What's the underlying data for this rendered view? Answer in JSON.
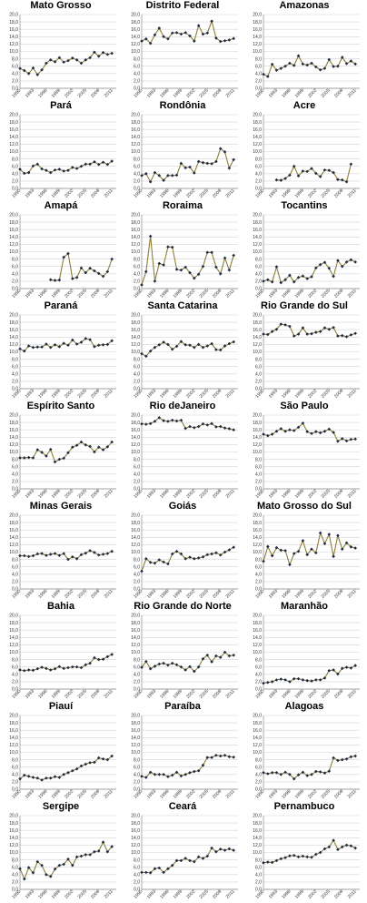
{
  "chart_data": {
    "type": "line",
    "layout": "small-multiples-3x9",
    "x_ticks": [
      "1990",
      "1993",
      "1996",
      "1999",
      "2002",
      "2005",
      "2008",
      "2011"
    ],
    "y_ticks": [
      "0,0",
      "2,0",
      "4,0",
      "6,0",
      "8,0",
      "10,0",
      "12,0",
      "14,0",
      "16,0",
      "18,0",
      "20,0"
    ],
    "x_range": [
      1990,
      2012
    ],
    "ylim": [
      0,
      20
    ],
    "grid": "horizontal",
    "line_color": "#8b7d3a",
    "marker_color": "#1f2a44",
    "panels": [
      {
        "title": "Mato Grosso",
        "start": 1990,
        "values": [
          5.4,
          4.8,
          4.0,
          5.5,
          3.7,
          5.0,
          6.8,
          7.7,
          7.2,
          8.3,
          7.1,
          7.5,
          8.2,
          7.7,
          6.8,
          7.7,
          8.3,
          9.8,
          8.7,
          9.7,
          9.2,
          9.5
        ]
      },
      {
        "title": "Distrito Federal",
        "start": 1990,
        "values": [
          12.8,
          13.4,
          12.2,
          14.5,
          16.3,
          14.0,
          13.4,
          15.0,
          15.1,
          14.7,
          15.1,
          14.2,
          12.8,
          17.0,
          14.7,
          15.0,
          18.2,
          13.6,
          12.7,
          12.9,
          13.1,
          13.5
        ]
      },
      {
        "title": "Amazonas",
        "start": 1990,
        "values": [
          3.8,
          3.2,
          6.5,
          4.9,
          5.4,
          6.0,
          6.8,
          6.2,
          8.8,
          6.6,
          6.3,
          6.8,
          5.8,
          5.0,
          5.4,
          7.8,
          5.9,
          6.0,
          8.4,
          6.7,
          7.4,
          6.6
        ]
      },
      {
        "title": "Pará",
        "start": 1990,
        "values": [
          5.2,
          4.1,
          4.3,
          6.1,
          6.6,
          5.3,
          4.9,
          4.3,
          5.0,
          5.2,
          4.7,
          4.9,
          5.7,
          5.4,
          6.0,
          6.6,
          6.6,
          7.2,
          6.5,
          7.1,
          6.5,
          7.4
        ]
      },
      {
        "title": "Rondônia",
        "start": 1990,
        "values": [
          3.5,
          4.0,
          1.8,
          4.3,
          3.5,
          2.2,
          3.5,
          3.5,
          3.6,
          6.8,
          5.6,
          5.8,
          4.2,
          7.3,
          7.0,
          6.8,
          6.7,
          7.3,
          10.8,
          9.9,
          5.5,
          7.8
        ]
      },
      {
        "title": "Acre",
        "start": 1993,
        "values": [
          2.3,
          2.2,
          2.7,
          3.6,
          6.0,
          3.4,
          4.7,
          4.6,
          5.4,
          4.1,
          3.2,
          5.0,
          4.9,
          4.3,
          2.4,
          2.3,
          1.8,
          6.6
        ]
      },
      {
        "title": "Amapá",
        "start": 1997,
        "values": [
          2.4,
          2.2,
          2.3,
          8.5,
          9.5,
          2.7,
          3.0,
          5.6,
          4.3,
          5.5,
          4.8,
          4.1,
          3.3,
          4.6,
          8.0
        ]
      },
      {
        "title": "Roraima",
        "start": 1990,
        "values": [
          1.0,
          4.6,
          14.2,
          2.0,
          6.8,
          6.4,
          11.3,
          11.2,
          5.2,
          5.0,
          5.8,
          4.3,
          2.8,
          3.9,
          6.0,
          9.8,
          9.8,
          5.8,
          4.0,
          8.3,
          5.0,
          9.0
        ]
      },
      {
        "title": "Tocantins",
        "start": 1990,
        "values": [
          2.0,
          2.4,
          1.8,
          5.9,
          1.6,
          2.4,
          3.6,
          1.8,
          3.0,
          3.4,
          2.7,
          3.2,
          5.6,
          6.5,
          7.1,
          5.5,
          3.3,
          7.6,
          6.0,
          7.2,
          7.8,
          7.2
        ]
      },
      {
        "title": "Paraná",
        "start": 1990,
        "values": [
          10.8,
          10.2,
          11.6,
          11.2,
          11.3,
          11.3,
          12.1,
          11.2,
          11.9,
          11.4,
          12.3,
          11.8,
          13.2,
          12.1,
          12.6,
          13.6,
          13.3,
          11.4,
          11.8,
          11.9,
          12.0,
          13.0
        ]
      },
      {
        "title": "Santa Catarina",
        "start": 1990,
        "values": [
          9.5,
          8.8,
          10.2,
          11.2,
          11.9,
          12.6,
          12.0,
          10.7,
          11.5,
          12.8,
          11.9,
          11.8,
          11.2,
          12.0,
          11.2,
          11.6,
          12.2,
          10.6,
          10.5,
          11.6,
          12.2,
          12.7
        ]
      },
      {
        "title": "Rio Grande do Sul",
        "start": 1990,
        "values": [
          14.8,
          14.7,
          15.5,
          16.1,
          17.5,
          17.3,
          16.9,
          14.3,
          14.8,
          16.5,
          14.8,
          14.9,
          15.3,
          15.5,
          16.5,
          16.1,
          16.6,
          14.3,
          14.4,
          14.1,
          14.6,
          15.0
        ]
      },
      {
        "title": "Espírito Santo",
        "start": 1990,
        "values": [
          8.4,
          8.4,
          8.5,
          8.4,
          10.6,
          9.9,
          8.9,
          10.7,
          7.3,
          8.0,
          8.3,
          9.8,
          11.3,
          11.8,
          12.7,
          11.9,
          11.5,
          10.0,
          11.3,
          10.6,
          11.4,
          12.7
        ]
      },
      {
        "title": "Rio deJaneiro",
        "start": 1990,
        "values": [
          17.6,
          17.5,
          17.7,
          18.3,
          19.3,
          18.5,
          18.3,
          18.6,
          18.4,
          18.6,
          16.4,
          16.9,
          16.6,
          16.9,
          17.6,
          17.3,
          17.7,
          16.8,
          16.9,
          16.5,
          16.3,
          16.0
        ]
      },
      {
        "title": "São Paulo",
        "start": 1990,
        "values": [
          14.8,
          14.4,
          14.8,
          15.6,
          16.3,
          15.6,
          16.0,
          15.8,
          16.7,
          17.8,
          15.5,
          15.0,
          15.5,
          15.2,
          15.6,
          16.2,
          15.3,
          12.9,
          13.6,
          13.0,
          13.4,
          13.5
        ]
      },
      {
        "title": "Minas Gerais",
        "start": 1990,
        "values": [
          9.0,
          9.0,
          8.8,
          9.0,
          9.5,
          9.6,
          9.1,
          9.4,
          9.6,
          9.1,
          9.6,
          8.0,
          8.7,
          8.2,
          9.3,
          9.7,
          10.4,
          9.9,
          9.2,
          9.4,
          9.6,
          10.2
        ]
      },
      {
        "title": "Goiás",
        "start": 1990,
        "values": [
          4.8,
          8.2,
          7.2,
          7.0,
          7.9,
          7.3,
          6.8,
          9.5,
          10.2,
          9.5,
          8.2,
          8.6,
          8.2,
          8.4,
          8.7,
          9.3,
          9.5,
          9.8,
          9.2,
          10.0,
          10.6,
          11.3
        ]
      },
      {
        "title": "Mato Grosso do Sul",
        "start": 1990,
        "values": [
          7.5,
          11.5,
          9.0,
          11.2,
          10.5,
          10.4,
          6.6,
          9.6,
          10.2,
          13.1,
          9.3,
          10.8,
          9.8,
          15.2,
          12.3,
          14.8,
          8.8,
          14.5,
          10.8,
          12.5,
          11.4,
          11.1
        ]
      },
      {
        "title": "Bahia",
        "start": 1990,
        "values": [
          5.2,
          5.0,
          5.2,
          5.1,
          5.5,
          5.9,
          5.6,
          5.2,
          5.5,
          6.1,
          5.6,
          5.8,
          6.0,
          6.0,
          5.8,
          6.6,
          7.0,
          8.5,
          8.0,
          8.1,
          8.8,
          9.4
        ]
      },
      {
        "title": "Rio Grande do Norte",
        "start": 1990,
        "values": [
          5.9,
          7.5,
          5.5,
          6.2,
          6.8,
          7.0,
          6.5,
          7.0,
          6.6,
          6.0,
          5.2,
          6.1,
          4.8,
          6.0,
          8.2,
          9.2,
          7.4,
          9.0,
          8.6,
          10.0,
          9.0,
          9.2
        ]
      },
      {
        "title": "Maranhão",
        "start": 1990,
        "values": [
          1.6,
          1.8,
          2.0,
          2.5,
          2.7,
          2.5,
          2.0,
          2.8,
          2.8,
          2.5,
          2.3,
          2.2,
          2.5,
          2.5,
          3.0,
          5.0,
          5.2,
          4.1,
          5.6,
          5.9,
          5.7,
          6.4
        ]
      },
      {
        "title": "Piauí",
        "start": 1990,
        "values": [
          2.8,
          3.8,
          3.5,
          3.2,
          3.0,
          2.5,
          3.0,
          3.0,
          3.4,
          3.2,
          4.0,
          4.5,
          5.0,
          5.5,
          6.3,
          6.8,
          7.2,
          7.3,
          8.5,
          8.2,
          8.0,
          9.0
        ]
      },
      {
        "title": "Paraíba",
        "start": 1990,
        "values": [
          3.5,
          3.2,
          4.6,
          4.0,
          4.0,
          4.0,
          3.4,
          3.8,
          4.6,
          3.6,
          4.0,
          4.5,
          4.8,
          5.0,
          6.5,
          8.6,
          8.6,
          9.2,
          9.0,
          9.2,
          8.8,
          8.7
        ]
      },
      {
        "title": "Alagoas",
        "start": 1990,
        "values": [
          4.5,
          4.2,
          4.5,
          4.5,
          4.0,
          4.6,
          4.0,
          2.8,
          3.9,
          4.6,
          3.7,
          4.0,
          4.8,
          4.7,
          4.4,
          4.9,
          8.5,
          7.8,
          8.0,
          8.2,
          8.8,
          9.0
        ]
      },
      {
        "title": "Sergipe",
        "start": 1990,
        "values": [
          5.6,
          2.8,
          5.9,
          4.5,
          7.5,
          6.5,
          4.0,
          3.5,
          5.5,
          6.5,
          6.8,
          8.2,
          6.5,
          8.8,
          9.0,
          9.4,
          9.4,
          10.2,
          10.4,
          12.8,
          10.2,
          11.6
        ]
      },
      {
        "title": "Ceará",
        "start": 1990,
        "values": [
          4.6,
          4.6,
          4.5,
          5.6,
          5.8,
          4.6,
          5.6,
          6.5,
          7.8,
          7.8,
          8.4,
          7.8,
          7.5,
          8.8,
          8.4,
          9.0,
          11.2,
          10.2,
          10.9,
          10.6,
          11.0,
          10.6
        ]
      },
      {
        "title": "Pernambuco",
        "start": 1990,
        "values": [
          7.2,
          7.4,
          7.3,
          7.8,
          8.3,
          8.6,
          9.1,
          9.2,
          8.8,
          9.0,
          8.8,
          8.7,
          9.5,
          10.0,
          11.0,
          11.5,
          13.3,
          10.8,
          11.5,
          12.0,
          11.8,
          11.2
        ]
      }
    ]
  }
}
